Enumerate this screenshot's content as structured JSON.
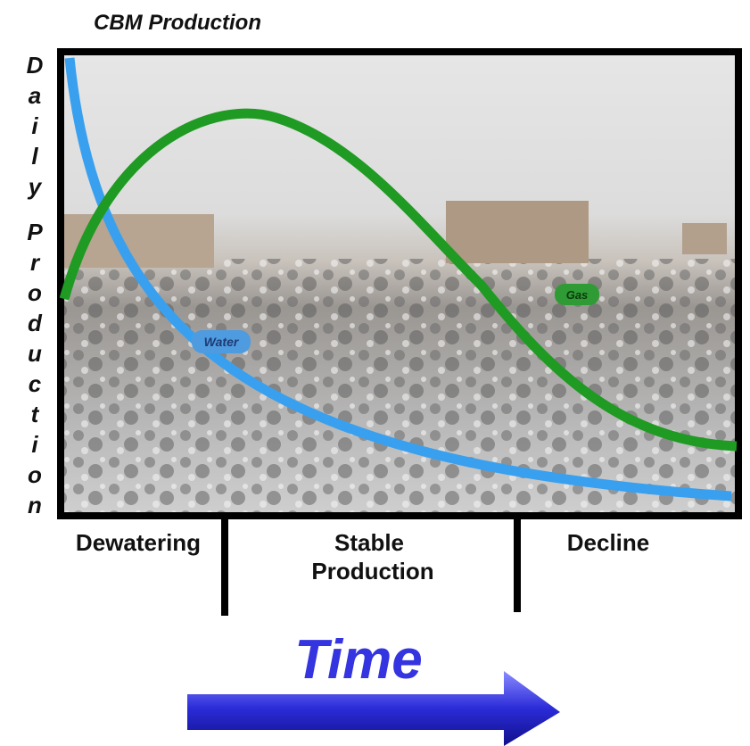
{
  "title": "CBM Production",
  "y_label": [
    "Daily",
    "Production"
  ],
  "labels": {
    "water": "Water",
    "gas": "Gas"
  },
  "phases": [
    {
      "lines": [
        "Dewatering"
      ]
    },
    {
      "lines": [
        "Stable",
        "Production"
      ]
    },
    {
      "lines": [
        "Decline"
      ]
    }
  ],
  "time": "Time"
}
